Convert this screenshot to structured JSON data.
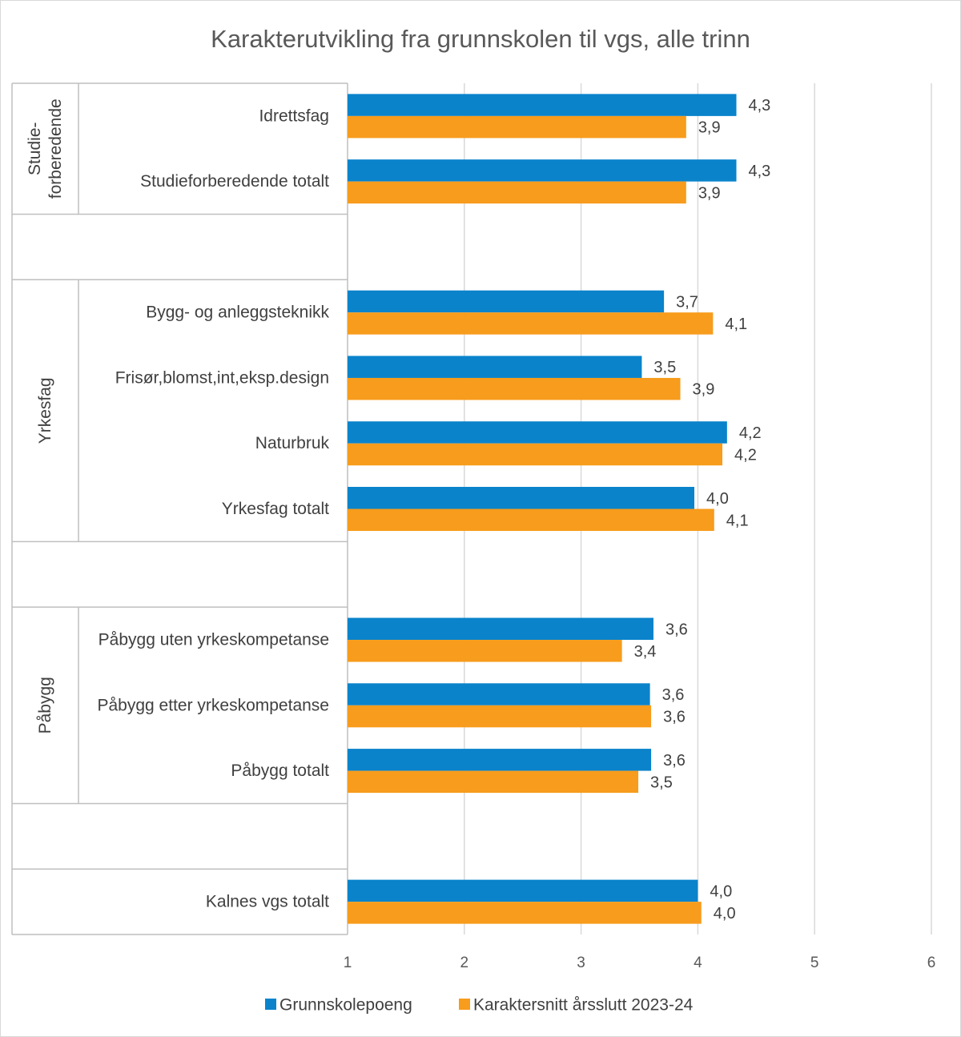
{
  "chart_data": {
    "type": "bar",
    "orientation": "horizontal",
    "title": "Karakterutvikling fra grunnskolen til vgs, alle trinn",
    "xlim": [
      1,
      6
    ],
    "xticks": [
      "1",
      "2",
      "3",
      "4",
      "5",
      "6"
    ],
    "grid": true,
    "legend_position": "bottom",
    "series": [
      {
        "name": "Grunnskolepoeng",
        "color": "#0a83cb"
      },
      {
        "name": "Karaktersnitt årsslutt 2023-24",
        "color": "#f79c1c"
      }
    ],
    "groups": [
      {
        "label": "Studie-\nforberedende",
        "label_lines": [
          "Studie-",
          "forberedende"
        ],
        "rows": [
          {
            "category": "Idrettsfag",
            "values": [
              4.33,
              3.9
            ],
            "labels": [
              "4,3",
              "3,9"
            ]
          },
          {
            "category": "Studieforberedende totalt",
            "values": [
              4.33,
              3.9
            ],
            "labels": [
              "4,3",
              "3,9"
            ]
          }
        ]
      },
      {
        "label": "Yrkesfag",
        "label_lines": [
          "Yrkesfag"
        ],
        "rows": [
          {
            "category": "Bygg- og anleggsteknikk",
            "values": [
              3.71,
              4.13
            ],
            "labels": [
              "3,7",
              "4,1"
            ]
          },
          {
            "category": "Frisør,blomst,int,eksp.design",
            "values": [
              3.52,
              3.85
            ],
            "labels": [
              "3,5",
              "3,9"
            ]
          },
          {
            "category": "Naturbruk",
            "values": [
              4.25,
              4.21
            ],
            "labels": [
              "4,2",
              "4,2"
            ]
          },
          {
            "category": "Yrkesfag totalt",
            "values": [
              3.97,
              4.14
            ],
            "labels": [
              "4,0",
              "4,1"
            ]
          }
        ]
      },
      {
        "label": "Påbygg",
        "label_lines": [
          "Påbygg"
        ],
        "rows": [
          {
            "category": "Påbygg uten yrkeskompetanse",
            "values": [
              3.62,
              3.35
            ],
            "labels": [
              "3,6",
              "3,4"
            ]
          },
          {
            "category": "Påbygg etter yrkeskompetanse",
            "values": [
              3.59,
              3.6
            ],
            "labels": [
              "3,6",
              "3,6"
            ]
          },
          {
            "category": "Påbygg totalt",
            "values": [
              3.6,
              3.49
            ],
            "labels": [
              "3,6",
              "3,5"
            ]
          }
        ]
      },
      {
        "label": "",
        "label_lines": [],
        "rows": [
          {
            "category": "Kalnes vgs totalt",
            "values": [
              4.0,
              4.03
            ],
            "labels": [
              "4,0",
              "4,0"
            ]
          }
        ]
      }
    ]
  }
}
